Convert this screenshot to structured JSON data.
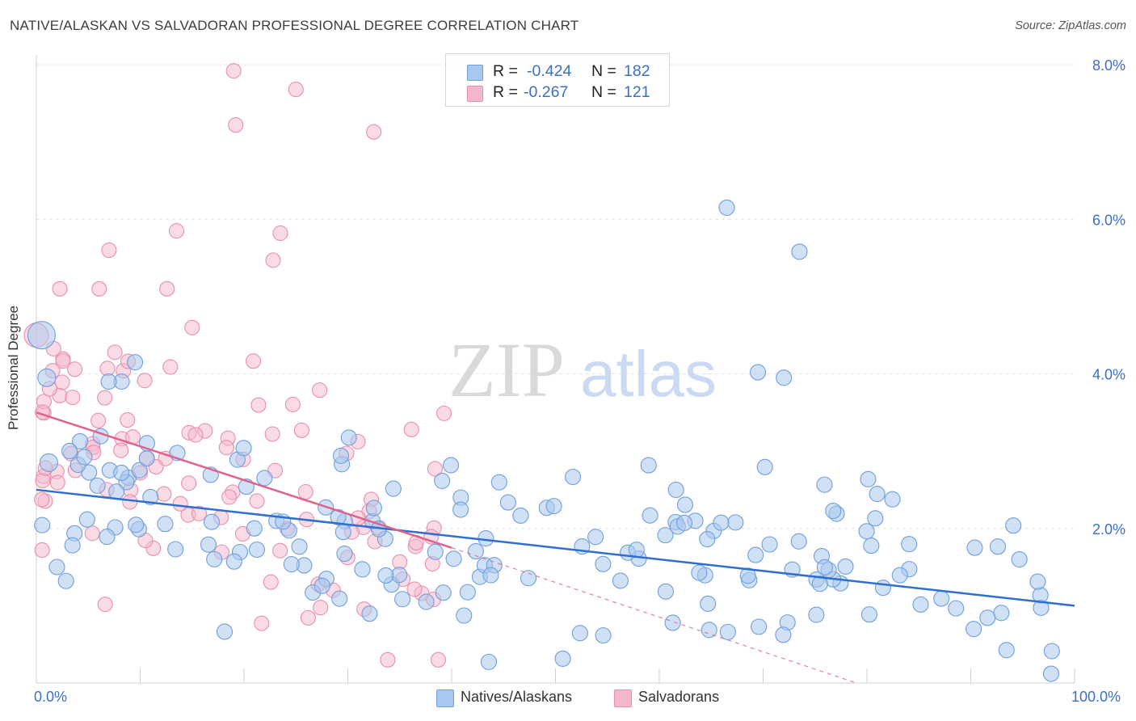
{
  "title": "NATIVE/ALASKAN VS SALVADORAN PROFESSIONAL DEGREE CORRELATION CHART",
  "source": "Source: ZipAtlas.com",
  "watermark": {
    "zip": "ZIP",
    "atlas": "atlas"
  },
  "colors": {
    "blue_fill": "#a9c8ef",
    "blue_stroke": "#6f9fdc",
    "blue_line": "#2f6fd0",
    "pink_fill": "#f5b7cb",
    "pink_stroke": "#e88fae",
    "pink_line": "#e0628c",
    "grid": "#e2e2e2",
    "axis_text": "#3a6fc4"
  },
  "stats": {
    "rows": [
      {
        "series": "Natives/Alaskans",
        "r_label": "R =",
        "r": "-0.424",
        "n_label": "N =",
        "n": "182",
        "color": "#a9c8ef"
      },
      {
        "series": "Salvadorans",
        "r_label": "R =",
        "r": "-0.267",
        "n_label": "N =",
        "n": "121",
        "color": "#f5b7cb"
      }
    ]
  },
  "chart_data": {
    "type": "scatter",
    "title": "NATIVE/ALASKAN VS SALVADORAN PROFESSIONAL DEGREE CORRELATION CHART",
    "xlabel": "",
    "ylabel": "Professional Degree",
    "x_ticks": [
      "0.0%",
      "100.0%"
    ],
    "y_ticks": [
      "2.0%",
      "4.0%",
      "6.0%",
      "8.0%"
    ],
    "xlim": [
      0,
      100
    ],
    "ylim": [
      0,
      8.0
    ],
    "grid": true,
    "legend_position": "bottom",
    "series": [
      {
        "name": "Natives/Alaskans",
        "n": 182,
        "r": -0.424,
        "trend": {
          "x": [
            0,
            100
          ],
          "y": [
            2.5,
            1.0
          ]
        },
        "notable_points": [
          [
            66.5,
            6.15
          ],
          [
            73.5,
            5.58
          ],
          [
            69.5,
            4.02
          ],
          [
            72,
            3.95
          ],
          [
            9.5,
            4.15
          ],
          [
            0.5,
            4.5
          ]
        ],
        "generator": {
          "count": 182,
          "seed": 11
        }
      },
      {
        "name": "Salvadorans",
        "n": 121,
        "r": -0.267,
        "trend": {
          "x": [
            0,
            40
          ],
          "y": [
            3.5,
            1.75
          ]
        },
        "trend_extrapolated": {
          "x": [
            40,
            79
          ],
          "y": [
            1.75,
            0.0
          ]
        },
        "notable_points": [
          [
            19,
            7.92
          ],
          [
            25,
            7.68
          ],
          [
            19.2,
            7.22
          ],
          [
            32.5,
            7.13
          ],
          [
            13.5,
            5.85
          ],
          [
            23.5,
            5.82
          ],
          [
            7,
            5.6
          ],
          [
            22.8,
            5.47
          ],
          [
            0,
            4.5
          ]
        ],
        "generator": {
          "count": 121,
          "seed": 29
        }
      }
    ]
  }
}
